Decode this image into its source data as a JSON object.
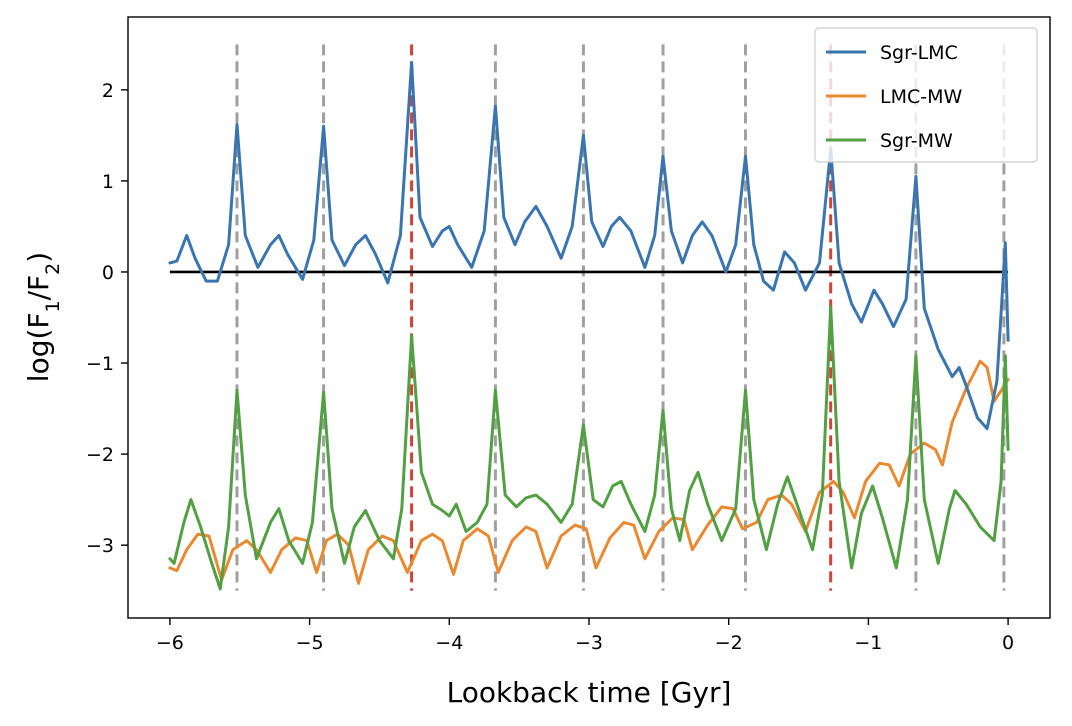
{
  "chart_data": {
    "type": "line",
    "xlabel": "Lookback time [Gyr]",
    "ylabel": "log(F1/F2)",
    "xlim": [
      -6.3,
      0.3
    ],
    "ylim": [
      -3.8,
      2.8
    ],
    "xticks": [
      -6,
      -5,
      -4,
      -3,
      -2,
      -1,
      0
    ],
    "xtick_labels": [
      "−6",
      "−5",
      "−4",
      "−3",
      "−2",
      "−1",
      "0"
    ],
    "yticks": [
      -3,
      -2,
      -1,
      0,
      1,
      2
    ],
    "ytick_labels": [
      "−3",
      "−2",
      "−1",
      "0",
      "1",
      "2"
    ],
    "grid": false,
    "legend_position": "top-right",
    "reference_line": {
      "y": 0,
      "x_range": [
        -6,
        0
      ],
      "color": "#000000"
    },
    "vlines": {
      "style": "dashed",
      "y_range": [
        -3.5,
        2.5
      ],
      "gray": {
        "color": "#a0a0a0",
        "x": [
          -5.52,
          -4.9,
          -3.67,
          -3.04,
          -2.47,
          -1.88,
          -0.66,
          -0.03
        ]
      },
      "red": {
        "color": "#d0433a",
        "x": [
          -4.27,
          -1.27
        ]
      }
    },
    "series": [
      {
        "name": "Sgr-LMC",
        "color": "#3b75af",
        "points": [
          [
            -6.0,
            0.1
          ],
          [
            -5.95,
            0.12
          ],
          [
            -5.88,
            0.4
          ],
          [
            -5.82,
            0.15
          ],
          [
            -5.74,
            -0.1
          ],
          [
            -5.66,
            -0.1
          ],
          [
            -5.58,
            0.3
          ],
          [
            -5.52,
            1.62
          ],
          [
            -5.46,
            0.4
          ],
          [
            -5.37,
            0.05
          ],
          [
            -5.28,
            0.3
          ],
          [
            -5.22,
            0.4
          ],
          [
            -5.16,
            0.2
          ],
          [
            -5.05,
            -0.08
          ],
          [
            -4.97,
            0.35
          ],
          [
            -4.9,
            1.6
          ],
          [
            -4.84,
            0.35
          ],
          [
            -4.75,
            0.07
          ],
          [
            -4.67,
            0.3
          ],
          [
            -4.6,
            0.4
          ],
          [
            -4.53,
            0.2
          ],
          [
            -4.44,
            -0.12
          ],
          [
            -4.35,
            0.4
          ],
          [
            -4.27,
            2.3
          ],
          [
            -4.21,
            0.6
          ],
          [
            -4.12,
            0.28
          ],
          [
            -4.05,
            0.45
          ],
          [
            -4.0,
            0.5
          ],
          [
            -3.94,
            0.3
          ],
          [
            -3.84,
            0.05
          ],
          [
            -3.75,
            0.45
          ],
          [
            -3.67,
            1.82
          ],
          [
            -3.61,
            0.6
          ],
          [
            -3.53,
            0.3
          ],
          [
            -3.46,
            0.55
          ],
          [
            -3.38,
            0.72
          ],
          [
            -3.3,
            0.5
          ],
          [
            -3.2,
            0.15
          ],
          [
            -3.12,
            0.5
          ],
          [
            -3.04,
            1.5
          ],
          [
            -2.98,
            0.55
          ],
          [
            -2.9,
            0.28
          ],
          [
            -2.84,
            0.5
          ],
          [
            -2.78,
            0.6
          ],
          [
            -2.7,
            0.45
          ],
          [
            -2.6,
            0.05
          ],
          [
            -2.53,
            0.4
          ],
          [
            -2.47,
            1.27
          ],
          [
            -2.41,
            0.45
          ],
          [
            -2.33,
            0.1
          ],
          [
            -2.26,
            0.4
          ],
          [
            -2.19,
            0.55
          ],
          [
            -2.12,
            0.4
          ],
          [
            -2.02,
            0.0
          ],
          [
            -1.95,
            0.3
          ],
          [
            -1.88,
            1.27
          ],
          [
            -1.82,
            0.3
          ],
          [
            -1.75,
            -0.1
          ],
          [
            -1.68,
            -0.2
          ],
          [
            -1.6,
            0.22
          ],
          [
            -1.53,
            0.1
          ],
          [
            -1.45,
            -0.2
          ],
          [
            -1.35,
            0.1
          ],
          [
            -1.27,
            1.35
          ],
          [
            -1.21,
            0.1
          ],
          [
            -1.12,
            -0.35
          ],
          [
            -1.05,
            -0.55
          ],
          [
            -0.96,
            -0.2
          ],
          [
            -0.9,
            -0.35
          ],
          [
            -0.82,
            -0.6
          ],
          [
            -0.73,
            -0.3
          ],
          [
            -0.66,
            1.05
          ],
          [
            -0.6,
            -0.4
          ],
          [
            -0.5,
            -0.85
          ],
          [
            -0.4,
            -1.15
          ],
          [
            -0.35,
            -1.05
          ],
          [
            -0.3,
            -1.25
          ],
          [
            -0.22,
            -1.6
          ],
          [
            -0.15,
            -1.72
          ],
          [
            -0.08,
            -1.2
          ],
          [
            -0.04,
            -0.2
          ],
          [
            -0.02,
            0.32
          ],
          [
            0.0,
            -0.75
          ]
        ]
      },
      {
        "name": "LMC-MW",
        "color": "#e98a33",
        "points": [
          [
            -6.0,
            -3.25
          ],
          [
            -5.95,
            -3.28
          ],
          [
            -5.88,
            -3.05
          ],
          [
            -5.8,
            -2.88
          ],
          [
            -5.72,
            -2.9
          ],
          [
            -5.63,
            -3.38
          ],
          [
            -5.55,
            -3.05
          ],
          [
            -5.45,
            -2.95
          ],
          [
            -5.38,
            -3.05
          ],
          [
            -5.28,
            -3.3
          ],
          [
            -5.2,
            -3.05
          ],
          [
            -5.1,
            -2.92
          ],
          [
            -5.02,
            -2.95
          ],
          [
            -4.95,
            -3.3
          ],
          [
            -4.88,
            -2.95
          ],
          [
            -4.8,
            -2.88
          ],
          [
            -4.72,
            -3.0
          ],
          [
            -4.65,
            -3.42
          ],
          [
            -4.58,
            -3.05
          ],
          [
            -4.48,
            -2.9
          ],
          [
            -4.4,
            -2.95
          ],
          [
            -4.3,
            -3.3
          ],
          [
            -4.2,
            -2.95
          ],
          [
            -4.12,
            -2.88
          ],
          [
            -4.05,
            -2.95
          ],
          [
            -3.97,
            -3.32
          ],
          [
            -3.9,
            -2.95
          ],
          [
            -3.8,
            -2.82
          ],
          [
            -3.72,
            -2.9
          ],
          [
            -3.65,
            -3.3
          ],
          [
            -3.55,
            -2.95
          ],
          [
            -3.45,
            -2.8
          ],
          [
            -3.38,
            -2.85
          ],
          [
            -3.3,
            -3.25
          ],
          [
            -3.2,
            -2.9
          ],
          [
            -3.1,
            -2.78
          ],
          [
            -3.02,
            -2.82
          ],
          [
            -2.95,
            -3.25
          ],
          [
            -2.85,
            -2.92
          ],
          [
            -2.75,
            -2.75
          ],
          [
            -2.68,
            -2.78
          ],
          [
            -2.6,
            -3.15
          ],
          [
            -2.5,
            -2.85
          ],
          [
            -2.4,
            -2.7
          ],
          [
            -2.32,
            -2.72
          ],
          [
            -2.26,
            -3.05
          ],
          [
            -2.15,
            -2.78
          ],
          [
            -2.05,
            -2.58
          ],
          [
            -1.97,
            -2.6
          ],
          [
            -1.9,
            -2.82
          ],
          [
            -1.8,
            -2.75
          ],
          [
            -1.72,
            -2.5
          ],
          [
            -1.62,
            -2.45
          ],
          [
            -1.55,
            -2.55
          ],
          [
            -1.45,
            -2.85
          ],
          [
            -1.35,
            -2.42
          ],
          [
            -1.25,
            -2.3
          ],
          [
            -1.18,
            -2.42
          ],
          [
            -1.1,
            -2.7
          ],
          [
            -1.02,
            -2.3
          ],
          [
            -0.92,
            -2.1
          ],
          [
            -0.85,
            -2.12
          ],
          [
            -0.78,
            -2.35
          ],
          [
            -0.7,
            -2.0
          ],
          [
            -0.6,
            -1.88
          ],
          [
            -0.52,
            -1.95
          ],
          [
            -0.47,
            -2.12
          ],
          [
            -0.4,
            -1.65
          ],
          [
            -0.3,
            -1.28
          ],
          [
            -0.2,
            -0.98
          ],
          [
            -0.15,
            -1.05
          ],
          [
            -0.1,
            -1.42
          ],
          [
            -0.04,
            -1.28
          ],
          [
            0.0,
            -1.18
          ]
        ]
      },
      {
        "name": "Sgr-MW",
        "color": "#52a043",
        "points": [
          [
            -6.0,
            -3.15
          ],
          [
            -5.97,
            -3.2
          ],
          [
            -5.9,
            -2.75
          ],
          [
            -5.85,
            -2.5
          ],
          [
            -5.78,
            -2.8
          ],
          [
            -5.7,
            -3.2
          ],
          [
            -5.64,
            -3.48
          ],
          [
            -5.58,
            -2.8
          ],
          [
            -5.52,
            -1.3
          ],
          [
            -5.46,
            -2.45
          ],
          [
            -5.38,
            -3.15
          ],
          [
            -5.28,
            -2.75
          ],
          [
            -5.22,
            -2.6
          ],
          [
            -5.15,
            -2.95
          ],
          [
            -5.05,
            -3.2
          ],
          [
            -4.98,
            -2.75
          ],
          [
            -4.9,
            -1.32
          ],
          [
            -4.84,
            -2.6
          ],
          [
            -4.75,
            -3.2
          ],
          [
            -4.68,
            -2.8
          ],
          [
            -4.6,
            -2.62
          ],
          [
            -4.5,
            -2.95
          ],
          [
            -4.4,
            -3.15
          ],
          [
            -4.34,
            -2.6
          ],
          [
            -4.27,
            -0.7
          ],
          [
            -4.2,
            -2.2
          ],
          [
            -4.12,
            -2.55
          ],
          [
            -4.05,
            -2.62
          ],
          [
            -4.0,
            -2.68
          ],
          [
            -3.95,
            -2.55
          ],
          [
            -3.88,
            -2.85
          ],
          [
            -3.8,
            -2.75
          ],
          [
            -3.73,
            -2.55
          ],
          [
            -3.67,
            -1.3
          ],
          [
            -3.6,
            -2.45
          ],
          [
            -3.52,
            -2.58
          ],
          [
            -3.45,
            -2.48
          ],
          [
            -3.38,
            -2.45
          ],
          [
            -3.3,
            -2.55
          ],
          [
            -3.2,
            -2.75
          ],
          [
            -3.12,
            -2.55
          ],
          [
            -3.04,
            -1.68
          ],
          [
            -2.97,
            -2.5
          ],
          [
            -2.9,
            -2.58
          ],
          [
            -2.83,
            -2.35
          ],
          [
            -2.77,
            -2.3
          ],
          [
            -2.7,
            -2.55
          ],
          [
            -2.6,
            -2.85
          ],
          [
            -2.53,
            -2.45
          ],
          [
            -2.47,
            -1.52
          ],
          [
            -2.41,
            -2.6
          ],
          [
            -2.35,
            -2.95
          ],
          [
            -2.28,
            -2.4
          ],
          [
            -2.22,
            -2.2
          ],
          [
            -2.15,
            -2.55
          ],
          [
            -2.05,
            -2.95
          ],
          [
            -1.95,
            -2.6
          ],
          [
            -1.88,
            -1.3
          ],
          [
            -1.82,
            -2.5
          ],
          [
            -1.73,
            -3.05
          ],
          [
            -1.65,
            -2.55
          ],
          [
            -1.58,
            -2.25
          ],
          [
            -1.5,
            -2.6
          ],
          [
            -1.4,
            -3.05
          ],
          [
            -1.33,
            -2.45
          ],
          [
            -1.27,
            -0.38
          ],
          [
            -1.21,
            -2.3
          ],
          [
            -1.12,
            -3.25
          ],
          [
            -1.05,
            -2.65
          ],
          [
            -0.97,
            -2.35
          ],
          [
            -0.9,
            -2.7
          ],
          [
            -0.8,
            -3.25
          ],
          [
            -0.72,
            -2.5
          ],
          [
            -0.66,
            -0.92
          ],
          [
            -0.6,
            -2.5
          ],
          [
            -0.5,
            -3.2
          ],
          [
            -0.42,
            -2.6
          ],
          [
            -0.38,
            -2.4
          ],
          [
            -0.3,
            -2.55
          ],
          [
            -0.2,
            -2.8
          ],
          [
            -0.1,
            -2.95
          ],
          [
            -0.05,
            -2.3
          ],
          [
            -0.02,
            -0.92
          ],
          [
            0.0,
            -1.95
          ]
        ]
      }
    ]
  }
}
